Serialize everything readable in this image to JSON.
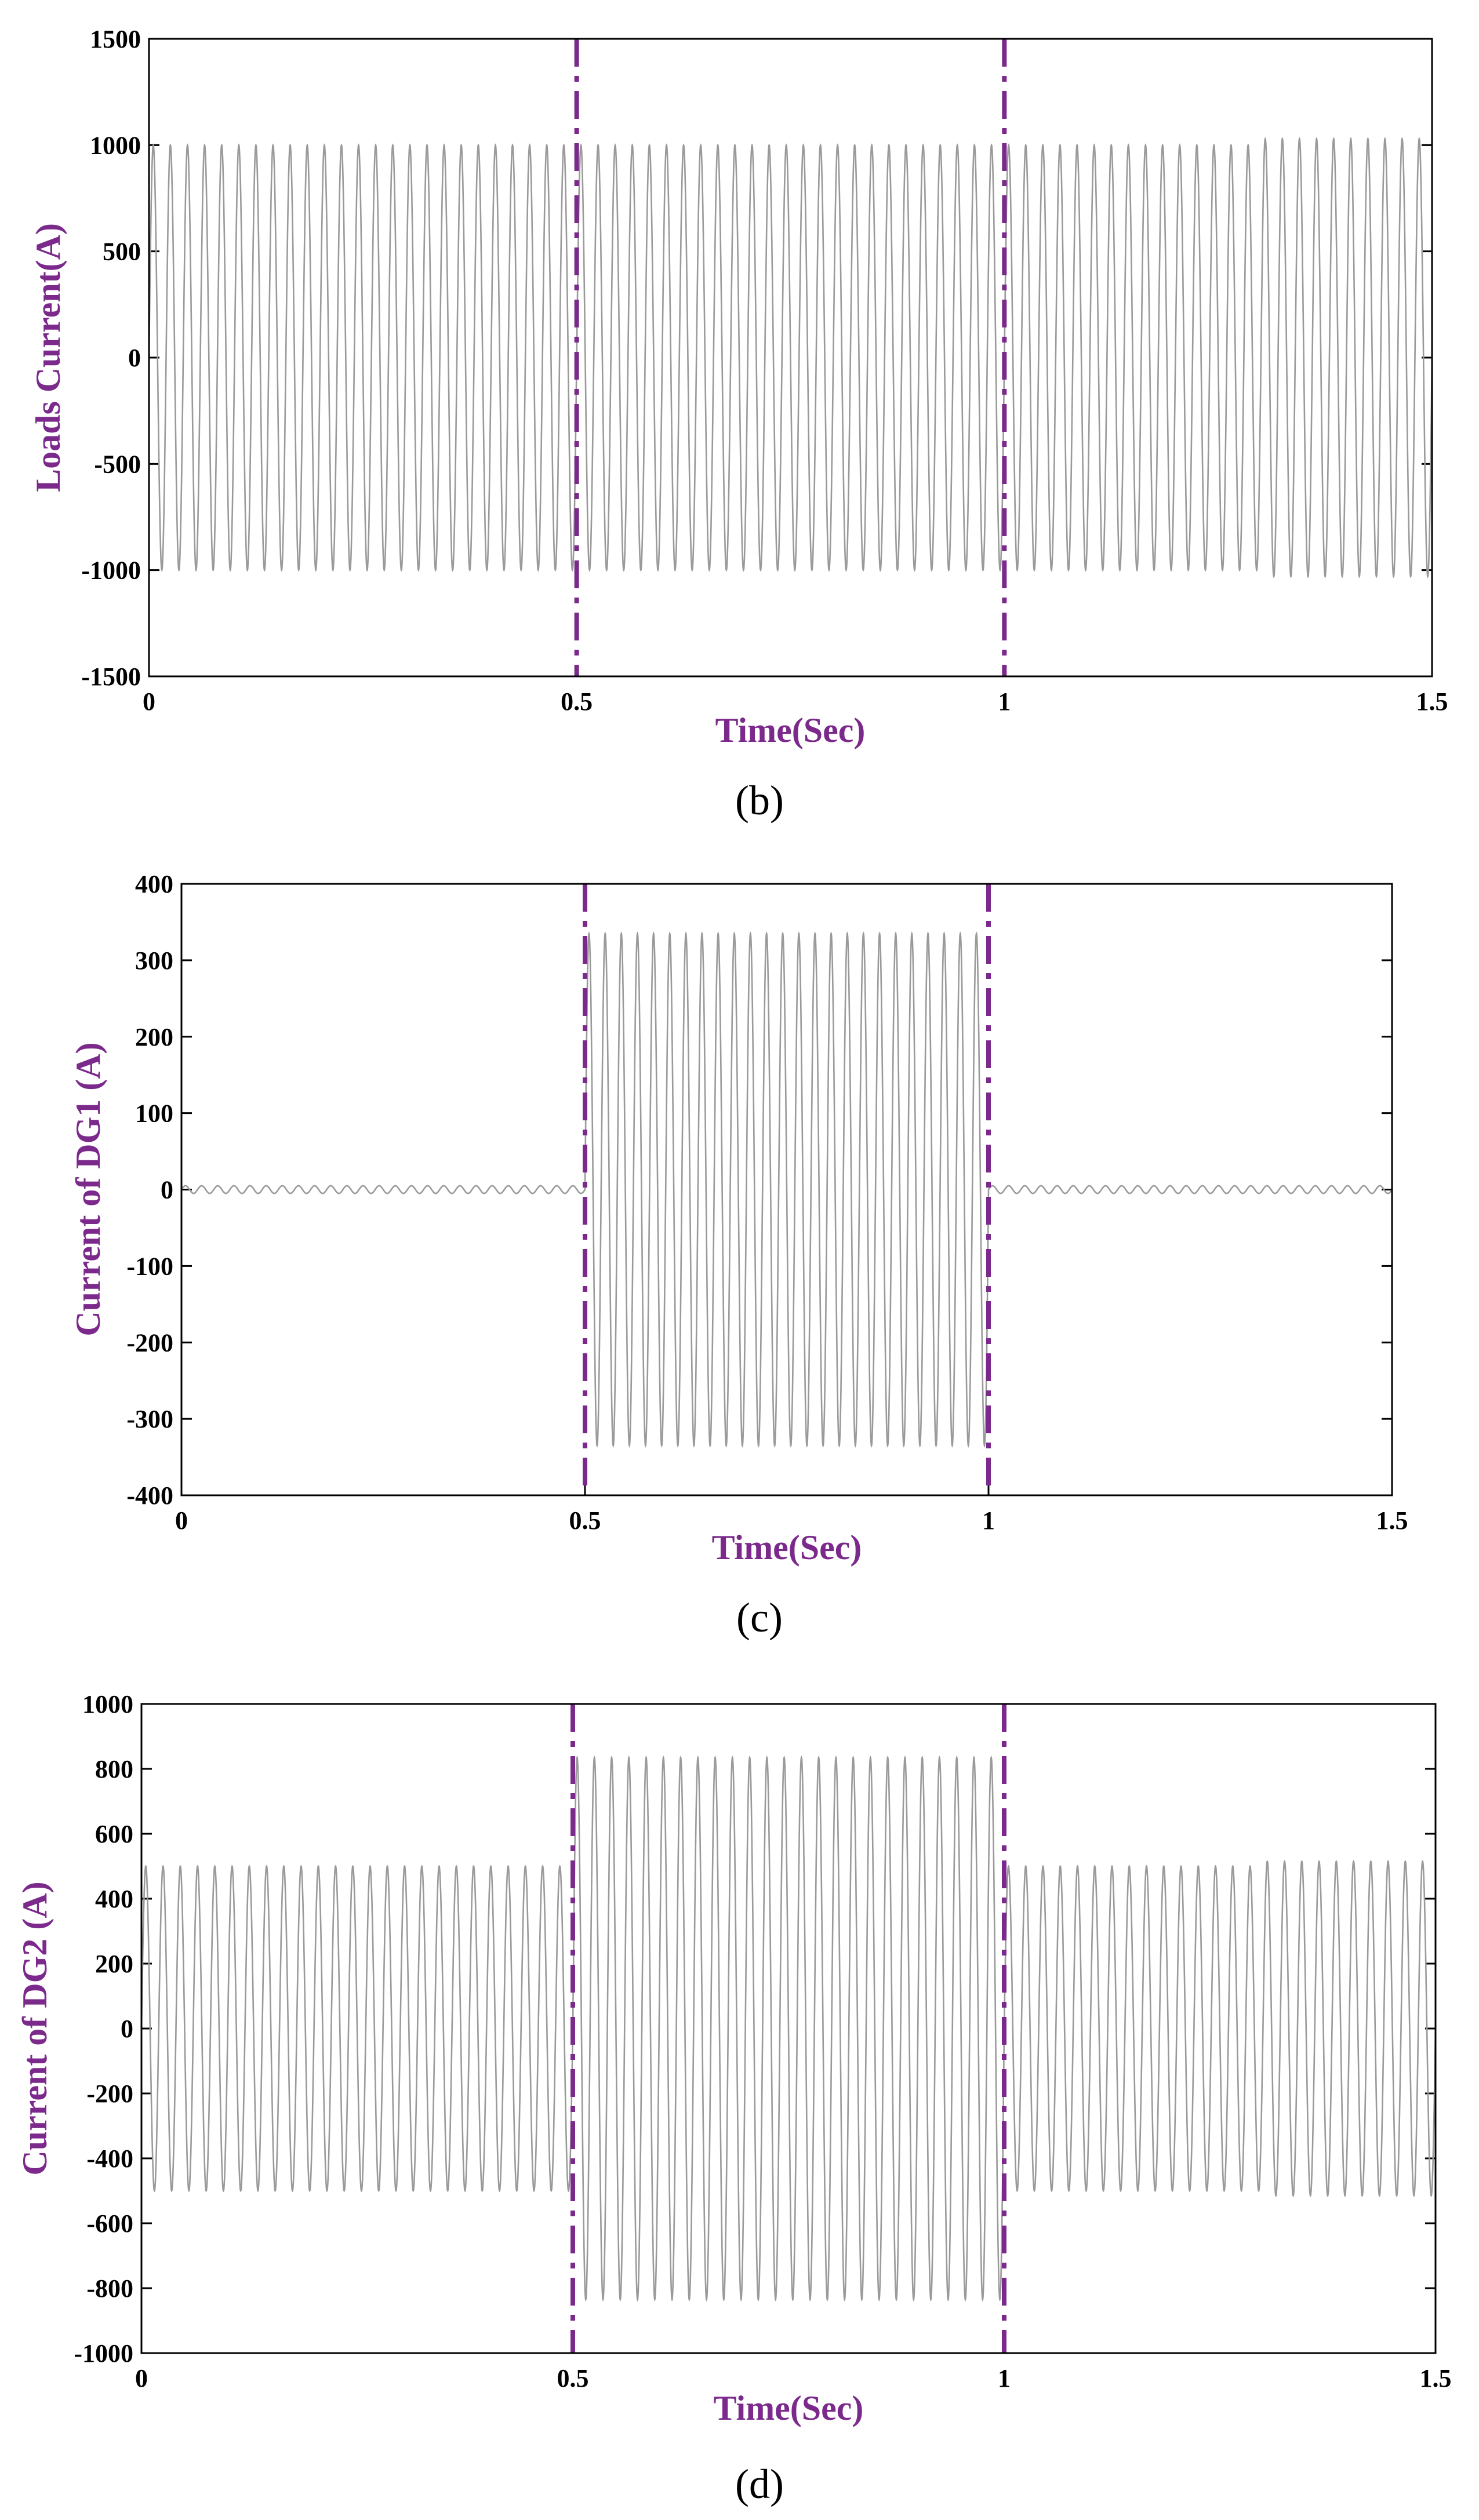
{
  "colors": {
    "signal": "#9a9a9a",
    "event_marker": "#7b2a8c",
    "axis_label": "#7b2a8c",
    "axes": "#000000"
  },
  "chart_data": [
    {
      "id": "b",
      "type": "line",
      "caption": "(b)",
      "xlabel": "Time(Sec)",
      "ylabel": "Loads Current(A)",
      "xlim": [
        0,
        1.5
      ],
      "ylim": [
        -1500,
        1500
      ],
      "xticks": [
        0,
        0.5,
        1,
        1.5
      ],
      "xtick_labels": [
        "0",
        "0.5",
        "1",
        "1.5"
      ],
      "yticks": [
        -1500,
        -1000,
        -500,
        0,
        500,
        1000,
        1500
      ],
      "ytick_labels": [
        "-1500",
        "-1000",
        "-500",
        "0",
        "500",
        "1000",
        "1500"
      ],
      "grid": false,
      "event_lines_x": [
        0.5,
        1.0
      ],
      "series": [
        {
          "frequency_hz": 50,
          "segments": [
            {
              "t0": 0,
              "t1": 0.5,
              "amplitude": 1000
            },
            {
              "t0": 0.5,
              "t1": 1.0,
              "amplitude": 1000
            },
            {
              "t0": 1.0,
              "t1": 1.3,
              "amplitude": 1000
            },
            {
              "t0": 1.3,
              "t1": 1.5,
              "amplitude": 1030
            }
          ]
        }
      ]
    },
    {
      "id": "c",
      "type": "line",
      "caption": "(c)",
      "xlabel": "Time(Sec)",
      "ylabel": "Current of DG1 (A)",
      "xlim": [
        0,
        1.5
      ],
      "ylim": [
        -400,
        400
      ],
      "xticks": [
        0,
        0.5,
        1,
        1.5
      ],
      "xtick_labels": [
        "0",
        "0.5",
        "1",
        "1.5"
      ],
      "yticks": [
        -400,
        -300,
        -200,
        -100,
        0,
        100,
        200,
        300,
        400
      ],
      "ytick_labels": [
        "-400",
        "-300",
        "-200",
        "-100",
        "0",
        "100",
        "200",
        "300",
        "400"
      ],
      "grid": false,
      "event_lines_x": [
        0.5,
        1.0
      ],
      "series": [
        {
          "frequency_hz": 50,
          "segments": [
            {
              "t0": 0,
              "t1": 0.5,
              "amplitude": 5
            },
            {
              "t0": 0.5,
              "t1": 1.0,
              "amplitude": 335
            },
            {
              "t0": 1.0,
              "t1": 1.5,
              "amplitude": 5
            }
          ]
        }
      ]
    },
    {
      "id": "d",
      "type": "line",
      "caption": "(d)",
      "xlabel": "Time(Sec)",
      "ylabel": "Current of DG2 (A)",
      "xlim": [
        0,
        1.5
      ],
      "ylim": [
        -1000,
        1000
      ],
      "xticks": [
        0,
        0.5,
        1,
        1.5
      ],
      "xtick_labels": [
        "0",
        "0.5",
        "1",
        "1.5"
      ],
      "yticks": [
        -1000,
        -800,
        -600,
        -400,
        -200,
        0,
        200,
        400,
        600,
        800,
        1000
      ],
      "ytick_labels": [
        "-1000",
        "-800",
        "-600",
        "-400",
        "-200",
        "0",
        "200",
        "400",
        "600",
        "800",
        "1000"
      ],
      "grid": false,
      "event_lines_x": [
        0.5,
        1.0
      ],
      "series": [
        {
          "frequency_hz": 50,
          "segments": [
            {
              "t0": 0,
              "t1": 0.5,
              "amplitude": 500
            },
            {
              "t0": 0.5,
              "t1": 1.0,
              "amplitude": 835
            },
            {
              "t0": 1.0,
              "t1": 1.3,
              "amplitude": 500
            },
            {
              "t0": 1.3,
              "t1": 1.5,
              "amplitude": 515
            }
          ]
        }
      ]
    }
  ]
}
